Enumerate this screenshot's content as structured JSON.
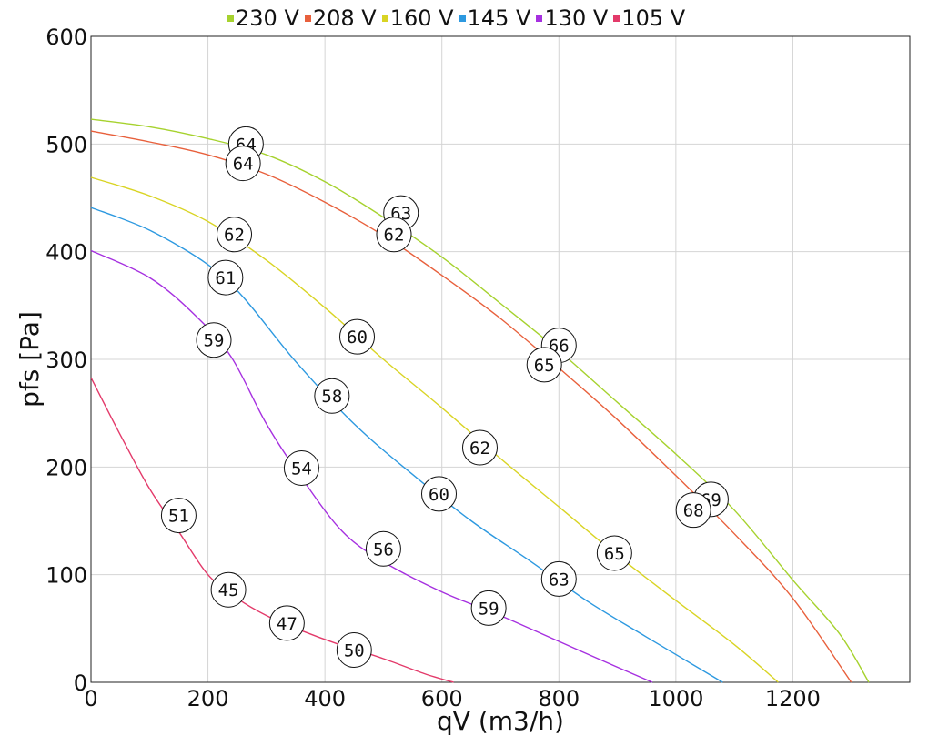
{
  "chart_data": {
    "type": "line",
    "xlabel": "qV (m3/h)",
    "ylabel": "pfs [Pa]",
    "xlim": [
      0,
      1400
    ],
    "ylim": [
      0,
      600
    ],
    "xticks": [
      0,
      200,
      400,
      600,
      800,
      1000,
      1200
    ],
    "yticks": [
      0,
      100,
      200,
      300,
      400,
      500,
      600
    ],
    "grid": true,
    "legend_position": "top",
    "series": [
      {
        "name": "230 V",
        "color": "#a6d22e",
        "points": [
          [
            0,
            523
          ],
          [
            100,
            516
          ],
          [
            200,
            505
          ],
          [
            300,
            490
          ],
          [
            400,
            465
          ],
          [
            500,
            432
          ],
          [
            600,
            395
          ],
          [
            700,
            352
          ],
          [
            800,
            308
          ],
          [
            900,
            260
          ],
          [
            1000,
            212
          ],
          [
            1100,
            160
          ],
          [
            1200,
            95
          ],
          [
            1280,
            45
          ],
          [
            1330,
            0
          ]
        ],
        "labels": [
          {
            "x": 265,
            "y": 500,
            "text": "64"
          },
          {
            "x": 530,
            "y": 436,
            "text": "63"
          },
          {
            "x": 800,
            "y": 313,
            "text": "66"
          },
          {
            "x": 1060,
            "y": 170,
            "text": "69"
          }
        ]
      },
      {
        "name": "208 V",
        "color": "#e8603c",
        "points": [
          [
            0,
            512
          ],
          [
            100,
            502
          ],
          [
            200,
            490
          ],
          [
            300,
            472
          ],
          [
            400,
            446
          ],
          [
            500,
            415
          ],
          [
            600,
            378
          ],
          [
            700,
            338
          ],
          [
            800,
            292
          ],
          [
            900,
            244
          ],
          [
            1000,
            192
          ],
          [
            1100,
            138
          ],
          [
            1200,
            78
          ],
          [
            1300,
            0
          ]
        ],
        "labels": [
          {
            "x": 260,
            "y": 482,
            "text": "64"
          },
          {
            "x": 518,
            "y": 416,
            "text": "62"
          },
          {
            "x": 775,
            "y": 295,
            "text": "65"
          },
          {
            "x": 1030,
            "y": 160,
            "text": "68"
          }
        ]
      },
      {
        "name": "160 V",
        "color": "#d9d424",
        "points": [
          [
            0,
            469
          ],
          [
            100,
            452
          ],
          [
            200,
            428
          ],
          [
            300,
            392
          ],
          [
            400,
            348
          ],
          [
            500,
            300
          ],
          [
            600,
            255
          ],
          [
            700,
            208
          ],
          [
            800,
            163
          ],
          [
            900,
            118
          ],
          [
            1000,
            76
          ],
          [
            1100,
            35
          ],
          [
            1175,
            0
          ]
        ],
        "labels": [
          {
            "x": 245,
            "y": 416,
            "text": "62"
          },
          {
            "x": 455,
            "y": 321,
            "text": "60"
          },
          {
            "x": 665,
            "y": 218,
            "text": "62"
          },
          {
            "x": 895,
            "y": 120,
            "text": "65"
          }
        ]
      },
      {
        "name": "145 V",
        "color": "#2d99e0",
        "points": [
          [
            0,
            441
          ],
          [
            100,
            420
          ],
          [
            200,
            388
          ],
          [
            260,
            358
          ],
          [
            350,
            298
          ],
          [
            450,
            240
          ],
          [
            550,
            193
          ],
          [
            650,
            150
          ],
          [
            750,
            113
          ],
          [
            850,
            75
          ],
          [
            950,
            42
          ],
          [
            1080,
            0
          ]
        ],
        "labels": [
          {
            "x": 230,
            "y": 376,
            "text": "61"
          },
          {
            "x": 412,
            "y": 266,
            "text": "58"
          },
          {
            "x": 595,
            "y": 175,
            "text": "60"
          },
          {
            "x": 800,
            "y": 96,
            "text": "63"
          }
        ]
      },
      {
        "name": "130 V",
        "color": "#a630e0",
        "points": [
          [
            0,
            401
          ],
          [
            100,
            376
          ],
          [
            180,
            340
          ],
          [
            240,
            302
          ],
          [
            300,
            240
          ],
          [
            360,
            190
          ],
          [
            430,
            140
          ],
          [
            500,
            112
          ],
          [
            600,
            84
          ],
          [
            700,
            62
          ],
          [
            800,
            38
          ],
          [
            900,
            14
          ],
          [
            960,
            0
          ]
        ],
        "labels": [
          {
            "x": 210,
            "y": 318,
            "text": "59"
          },
          {
            "x": 360,
            "y": 199,
            "text": "54"
          },
          {
            "x": 500,
            "y": 124,
            "text": "56"
          },
          {
            "x": 680,
            "y": 69,
            "text": "59"
          }
        ]
      },
      {
        "name": "105 V",
        "color": "#e33a6a",
        "points": [
          [
            0,
            283
          ],
          [
            50,
            230
          ],
          [
            100,
            180
          ],
          [
            150,
            140
          ],
          [
            200,
            100
          ],
          [
            250,
            78
          ],
          [
            300,
            62
          ],
          [
            360,
            48
          ],
          [
            420,
            36
          ],
          [
            500,
            22
          ],
          [
            570,
            8
          ],
          [
            620,
            0
          ]
        ],
        "labels": [
          {
            "x": 150,
            "y": 155,
            "text": "51"
          },
          {
            "x": 235,
            "y": 86,
            "text": "45"
          },
          {
            "x": 335,
            "y": 55,
            "text": "47"
          },
          {
            "x": 450,
            "y": 30,
            "text": "50"
          }
        ]
      }
    ]
  }
}
